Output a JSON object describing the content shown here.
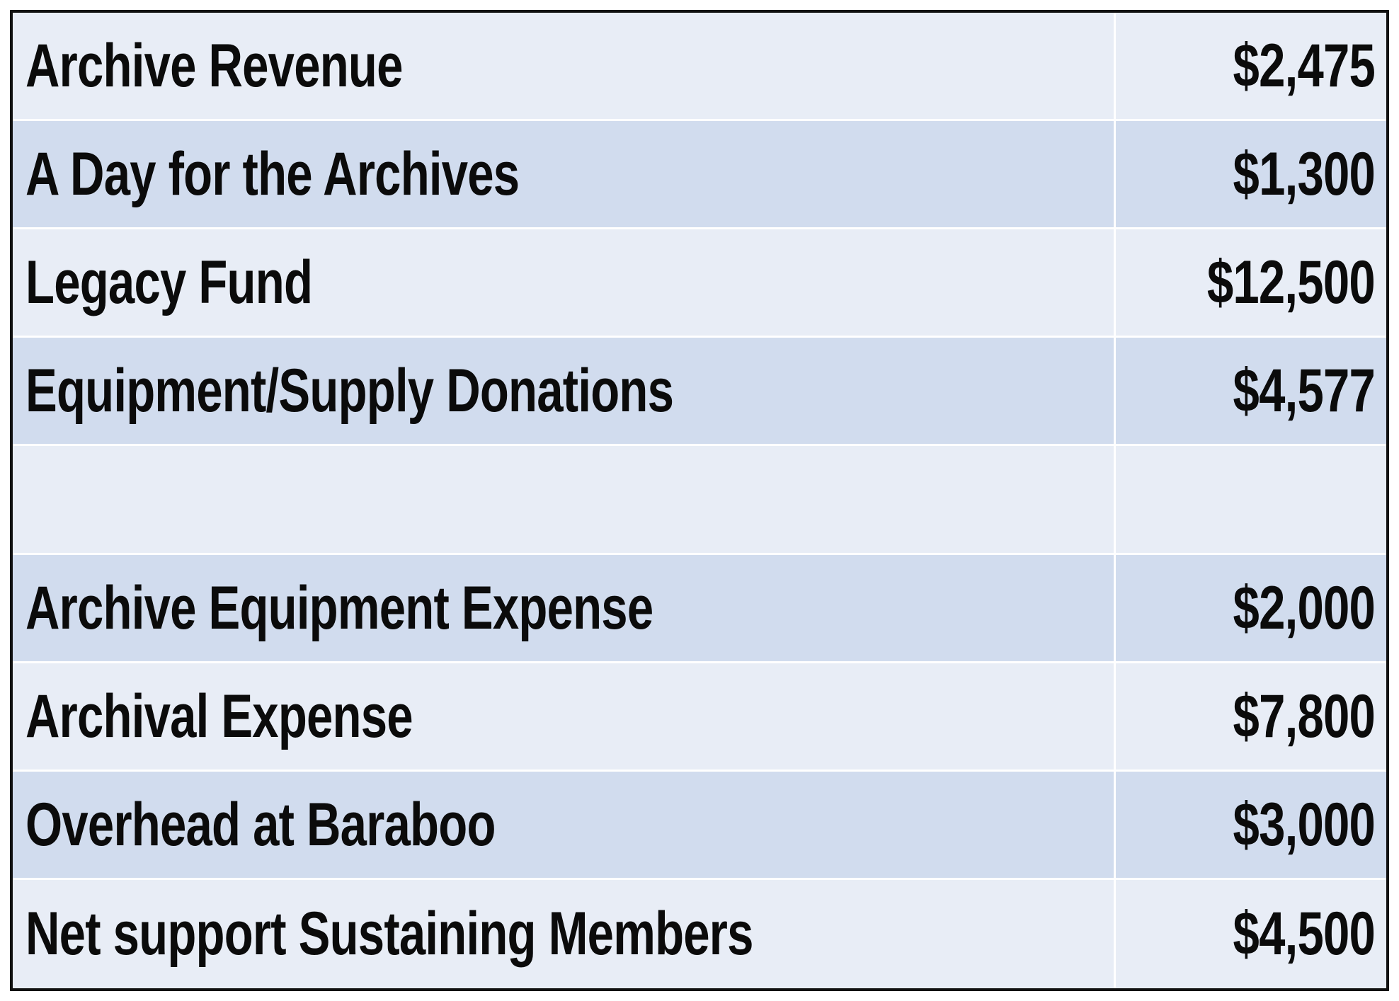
{
  "table": {
    "rows": [
      {
        "label": "Archive Revenue",
        "amount": "$2,475"
      },
      {
        "label": "A Day for the Archives",
        "amount": "$1,300"
      },
      {
        "label": "Legacy Fund",
        "amount": "$12,500"
      },
      {
        "label": "Equipment/Supply Donations",
        "amount": "$4,577"
      },
      {
        "label": "",
        "amount": ""
      },
      {
        "label": "Archive Equipment Expense",
        "amount": "$2,000"
      },
      {
        "label": "Archival Expense",
        "amount": "$7,800"
      },
      {
        "label": "Overhead at Baraboo",
        "amount": "$3,000"
      },
      {
        "label": "Net support Sustaining Members",
        "amount": "$4,500"
      }
    ]
  },
  "colors": {
    "row_light": "#e8edf6",
    "row_dark": "#d1dcee",
    "border": "#111111",
    "text": "#0b0b0b"
  }
}
